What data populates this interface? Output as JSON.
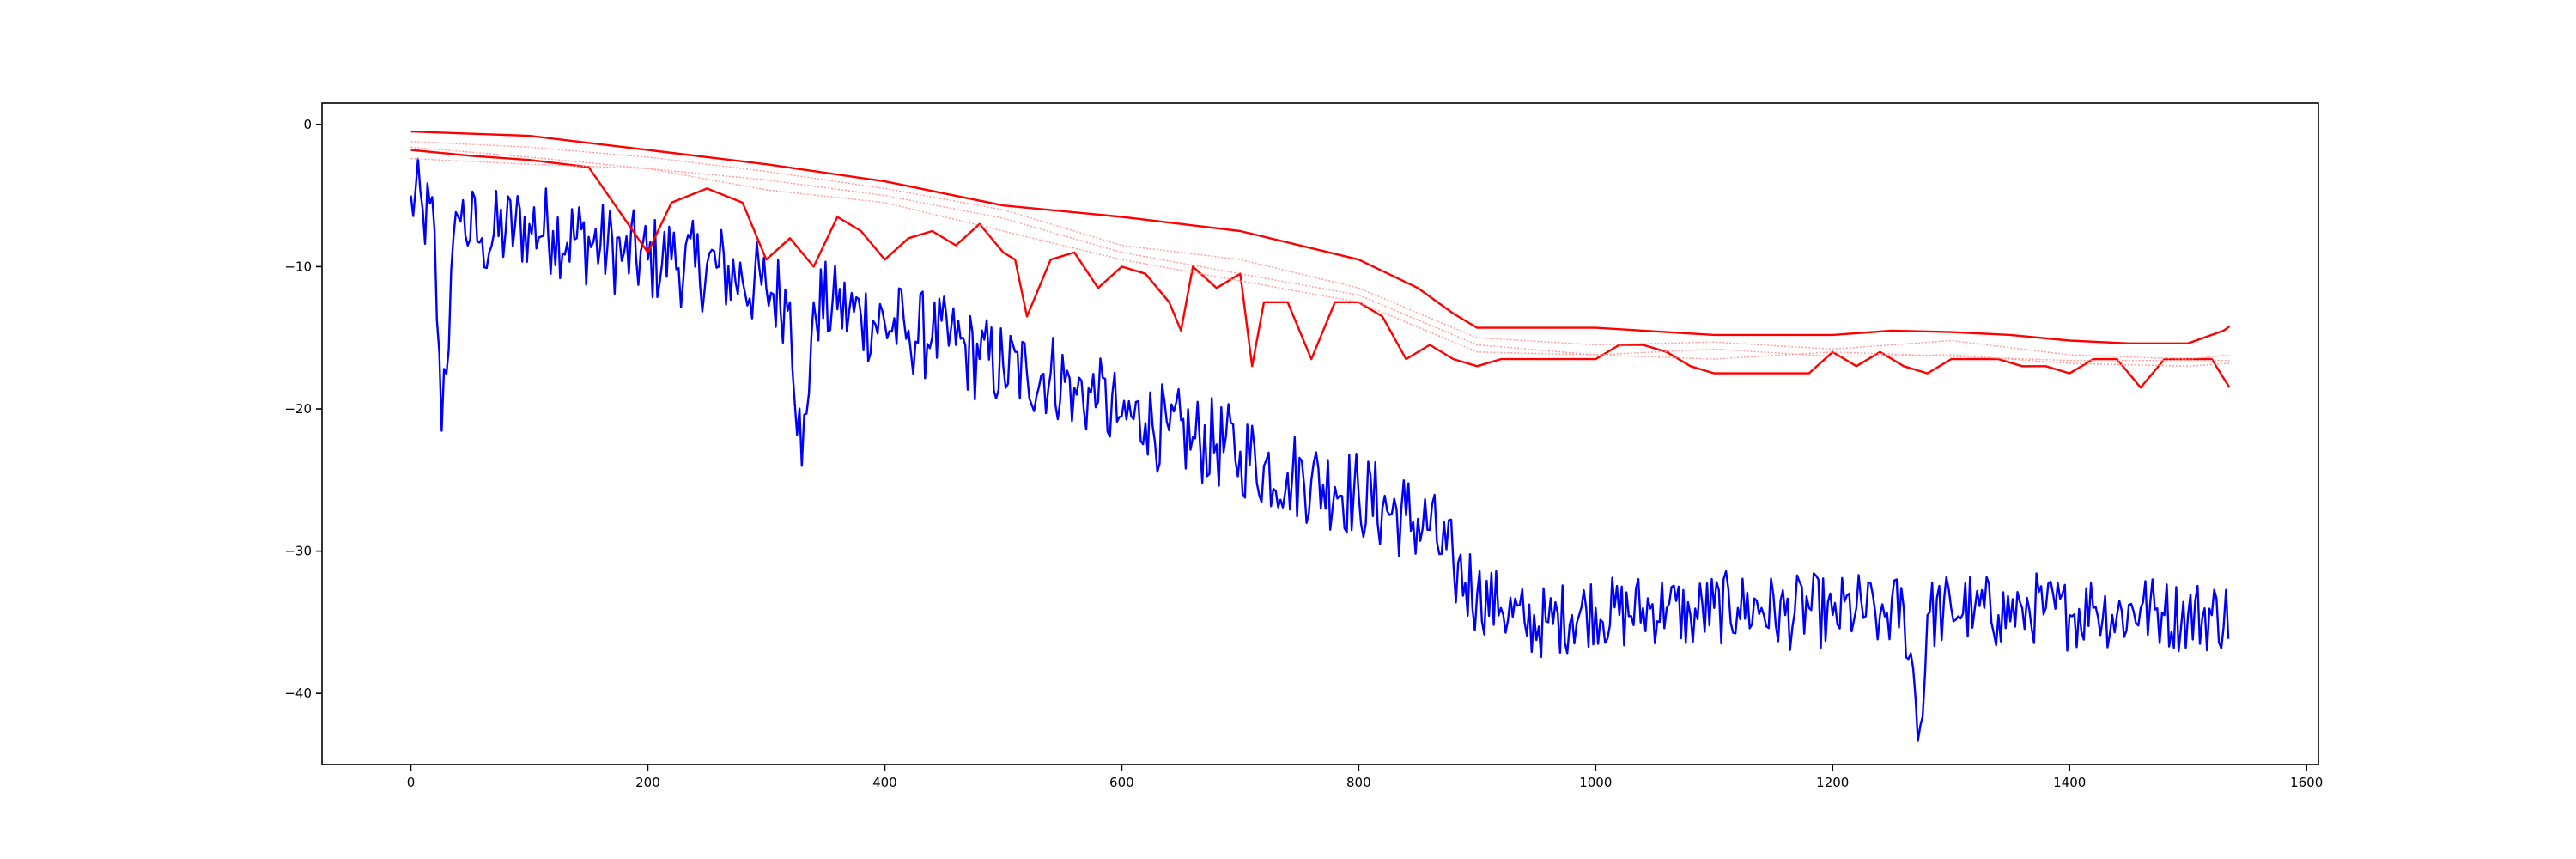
{
  "chart_data": {
    "type": "line",
    "title": "",
    "xlabel": "",
    "ylabel": "",
    "xlim": [
      -75,
      1610
    ],
    "ylim": [
      -45,
      1.5
    ],
    "xticks": [
      0,
      200,
      400,
      600,
      800,
      1000,
      1200,
      1400,
      1600
    ],
    "yticks": [
      0,
      -10,
      -20,
      -30,
      -40
    ],
    "xtick_labels": [
      "0",
      "200",
      "400",
      "600",
      "800",
      "1000",
      "1200",
      "1400",
      "1600"
    ],
    "ytick_labels": [
      "0",
      "−10",
      "−20",
      "−30",
      "−40"
    ],
    "grid": false,
    "legend": "none",
    "series": [
      {
        "color": "#0000ff",
        "style": "solid",
        "x": [
          0,
          10,
          20,
          25,
          40,
          60,
          80,
          100,
          120,
          140,
          160,
          180,
          200,
          220,
          240,
          260,
          280,
          300,
          320,
          330,
          340,
          360,
          380,
          400,
          420,
          440,
          460,
          480,
          500,
          520,
          540,
          560,
          580,
          600,
          620,
          640,
          660,
          680,
          700,
          720,
          740,
          760,
          780,
          800,
          820,
          840,
          860,
          880,
          900,
          920,
          940,
          960,
          980,
          1000,
          1020,
          1040,
          1060,
          1080,
          1100,
          1120,
          1140,
          1160,
          1180,
          1200,
          1220,
          1240,
          1260,
          1275,
          1280,
          1300,
          1320,
          1340,
          1360,
          1380,
          1400,
          1420,
          1440,
          1460,
          1480,
          1500,
          1520,
          1535
        ],
        "y": [
          -5,
          -6,
          -7.5,
          -20.5,
          -6.5,
          -8,
          -7.5,
          -7,
          -7.5,
          -8,
          -8.5,
          -9,
          -9.5,
          -9.5,
          -10,
          -10,
          -11,
          -11.5,
          -12.5,
          -24,
          -12.5,
          -13,
          -13.5,
          -14,
          -14.5,
          -15,
          -15.5,
          -16.5,
          -17,
          -17.5,
          -17.5,
          -18.5,
          -19.5,
          -20.5,
          -21,
          -21.5,
          -22,
          -22.5,
          -23,
          -24,
          -24.5,
          -25,
          -25.5,
          -26,
          -27,
          -27.5,
          -28.5,
          -31,
          -33,
          -34,
          -35,
          -35,
          -34.5,
          -34,
          -34.5,
          -34,
          -34,
          -34.5,
          -34,
          -34,
          -34,
          -34.5,
          -34,
          -34.5,
          -34,
          -34.5,
          -34,
          -43,
          -34.5,
          -34,
          -34,
          -34.5,
          -34,
          -34,
          -34.5,
          -34,
          -34.5,
          -34,
          -34.5,
          -34.5,
          -34.5,
          -34.5
        ]
      },
      {
        "color": "#ff0000",
        "style": "solid",
        "x": [
          0,
          100,
          200,
          300,
          400,
          500,
          600,
          700,
          800,
          850,
          880,
          900,
          1000,
          1100,
          1200,
          1250,
          1300,
          1350,
          1400,
          1450,
          1500,
          1530,
          1535
        ],
        "y": [
          -0.5,
          -0.8,
          -1.8,
          -2.8,
          -4,
          -5.7,
          -6.5,
          -7.5,
          -9.5,
          -11.5,
          -13.3,
          -14.3,
          -14.3,
          -14.8,
          -14.8,
          -14.5,
          -14.6,
          -14.8,
          -15.2,
          -15.4,
          -15.4,
          -14.5,
          -14.2
        ]
      },
      {
        "color": "#ff0000",
        "style": "solid",
        "x": [
          0,
          50,
          100,
          150,
          200,
          220,
          250,
          280,
          300,
          320,
          340,
          360,
          380,
          400,
          420,
          440,
          460,
          480,
          500,
          510,
          520,
          540,
          560,
          580,
          600,
          620,
          640,
          650,
          660,
          680,
          700,
          710,
          720,
          740,
          760,
          780,
          800,
          820,
          840,
          860,
          880,
          900,
          920,
          1000,
          1020,
          1040,
          1060,
          1080,
          1100,
          1120,
          1140,
          1160,
          1180,
          1200,
          1220,
          1240,
          1260,
          1280,
          1300,
          1320,
          1340,
          1360,
          1380,
          1400,
          1420,
          1440,
          1460,
          1480,
          1500,
          1520,
          1535
        ],
        "y": [
          -1.8,
          -2.2,
          -2.5,
          -3,
          -9,
          -5.5,
          -4.5,
          -5.5,
          -9.5,
          -8,
          -10,
          -6.5,
          -7.5,
          -9.5,
          -8,
          -7.5,
          -8.5,
          -7,
          -9,
          -9.5,
          -13.5,
          -9.5,
          -9,
          -11.5,
          -10,
          -10.5,
          -12.5,
          -14.5,
          -10,
          -11.5,
          -10.5,
          -17,
          -12.5,
          -12.5,
          -16.5,
          -12.5,
          -12.5,
          -13.5,
          -16.5,
          -15.5,
          -16.5,
          -17,
          -16.5,
          -16.5,
          -15.5,
          -15.5,
          -16,
          -17,
          -17.5,
          -17.5,
          -17.5,
          -17.5,
          -17.5,
          -16,
          -17,
          -16,
          -17,
          -17.5,
          -16.5,
          -16.5,
          -16.5,
          -17,
          -17,
          -17.5,
          -16.5,
          -16.5,
          -18.5,
          -16.5,
          -16.5,
          -16.5,
          -18.5
        ]
      },
      {
        "color": "#ff9a9a",
        "style": "dotted",
        "x": [
          0,
          100,
          200,
          300,
          400,
          500,
          600,
          700,
          800,
          900,
          1000,
          1100,
          1200,
          1300,
          1400,
          1500,
          1535
        ],
        "y": [
          -1.2,
          -1.6,
          -2.3,
          -3.3,
          -4.5,
          -6,
          -8.5,
          -9.5,
          -11.5,
          -15,
          -15.5,
          -15.3,
          -15.8,
          -15.2,
          -16.2,
          -16.5,
          -16.2
        ]
      },
      {
        "color": "#ff9a9a",
        "style": "dotted",
        "x": [
          0,
          100,
          200,
          300,
          400,
          500,
          600,
          700,
          800,
          900,
          1000,
          1100,
          1200,
          1300,
          1400,
          1500,
          1535
        ],
        "y": [
          -2.4,
          -2.8,
          -3.1,
          -4.6,
          -5.5,
          -7.5,
          -9.5,
          -11,
          -12.5,
          -16,
          -16.2,
          -16.5,
          -16,
          -16.3,
          -16.6,
          -16.6,
          -16.6
        ]
      },
      {
        "color": "#ff9a9a",
        "style": "dotted",
        "x": [
          0,
          100,
          200,
          300,
          400,
          500,
          600,
          700,
          800,
          900,
          1000,
          1100,
          1200,
          1300,
          1400,
          1500,
          1535
        ],
        "y": [
          -1.6,
          -2.3,
          -3.1,
          -3.9,
          -5,
          -6.6,
          -9,
          -10.5,
          -12,
          -15.5,
          -16.2,
          -15.8,
          -16.3,
          -16.2,
          -16.8,
          -17,
          -16.8
        ]
      }
    ]
  }
}
